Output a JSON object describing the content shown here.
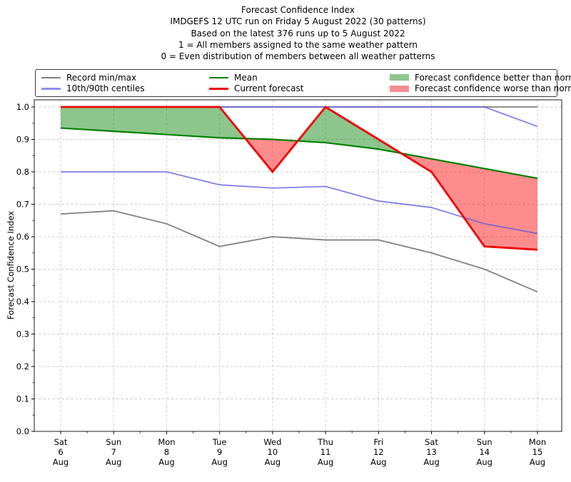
{
  "chart_data": {
    "type": "line",
    "title": "Forecast Confidence Index",
    "subtitle_lines": [
      "IMDGEFS 12 UTC run on Friday 5 August 2022 (30 patterns)",
      "Based on the latest 376 runs up to 5 August 2022",
      "1 = All members assigned to the same weather pattern",
      "0 = Even distribution of members between all weather patterns"
    ],
    "ylabel": "Forecast Confidence Index",
    "ylim": [
      0.0,
      1.0
    ],
    "grid": true,
    "legend_position": "top",
    "yticks": [
      "0.0",
      "0.1",
      "0.2",
      "0.3",
      "0.4",
      "0.5",
      "0.6",
      "0.7",
      "0.8",
      "0.9",
      "1.0"
    ],
    "x_labels": [
      [
        "Sat",
        "6",
        "Aug"
      ],
      [
        "Sun",
        "7",
        "Aug"
      ],
      [
        "Mon",
        "8",
        "Aug"
      ],
      [
        "Tue",
        "9",
        "Aug"
      ],
      [
        "Wed",
        "10",
        "Aug"
      ],
      [
        "Thu",
        "11",
        "Aug"
      ],
      [
        "Fri",
        "12",
        "Aug"
      ],
      [
        "Sat",
        "13",
        "Aug"
      ],
      [
        "Sun",
        "14",
        "Aug"
      ],
      [
        "Mon",
        "15",
        "Aug"
      ]
    ],
    "series": [
      {
        "id": "record_max",
        "name": "Record min/max",
        "color": "#808080",
        "width": 1.8,
        "values": [
          1.0,
          1.0,
          1.0,
          1.0,
          1.0,
          1.0,
          1.0,
          1.0,
          1.0,
          1.0
        ]
      },
      {
        "id": "record_min",
        "name": "Record min/max",
        "color": "#808080",
        "width": 1.8,
        "values": [
          0.67,
          0.68,
          0.64,
          0.57,
          0.6,
          0.59,
          0.59,
          0.55,
          0.5,
          0.43
        ]
      },
      {
        "id": "centile_90",
        "name": "10th/90th centiles",
        "color": "#5555e6",
        "opacity": 0.75,
        "width": 1.8,
        "values": [
          1.0,
          1.0,
          1.0,
          1.0,
          1.0,
          1.0,
          1.0,
          1.0,
          1.0,
          0.94
        ]
      },
      {
        "id": "centile_10",
        "name": "10th/90th centiles",
        "color": "#5555e6",
        "opacity": 0.75,
        "width": 1.8,
        "values": [
          0.8,
          0.8,
          0.8,
          0.76,
          0.75,
          0.755,
          0.71,
          0.69,
          0.64,
          0.61
        ]
      },
      {
        "id": "mean",
        "name": "Mean",
        "color": "#008000",
        "width": 2.2,
        "values": [
          0.935,
          0.925,
          0.915,
          0.905,
          0.9,
          0.89,
          0.87,
          0.84,
          0.81,
          0.78
        ]
      },
      {
        "id": "forecast",
        "name": "Current forecast",
        "color": "#ee0000",
        "width": 2.8,
        "values": [
          1.0,
          1.0,
          1.0,
          1.0,
          0.8,
          1.0,
          0.9,
          0.8,
          0.57,
          0.56
        ]
      }
    ],
    "fills": {
      "better": {
        "label": "Forecast confidence better than normal",
        "color": "#008000",
        "alpha": 0.45
      },
      "worse": {
        "label": "Forecast confidence worse than normal",
        "color": "#ff0000",
        "alpha": 0.45
      }
    },
    "legend": [
      {
        "label": "Record min/max",
        "swatch": "line",
        "color": "#808080"
      },
      {
        "label": "10th/90th centiles",
        "swatch": "line",
        "color": "#8f8fee"
      },
      {
        "label": "Mean",
        "swatch": "line",
        "color": "#008000"
      },
      {
        "label": "Current forecast",
        "swatch": "line",
        "color": "#ee0000"
      },
      {
        "label": "Forecast confidence better than normal",
        "swatch": "patch",
        "color": "#8dc68d"
      },
      {
        "label": "Forecast confidence worse than normal",
        "swatch": "patch",
        "color": "#f58f8f"
      }
    ]
  }
}
